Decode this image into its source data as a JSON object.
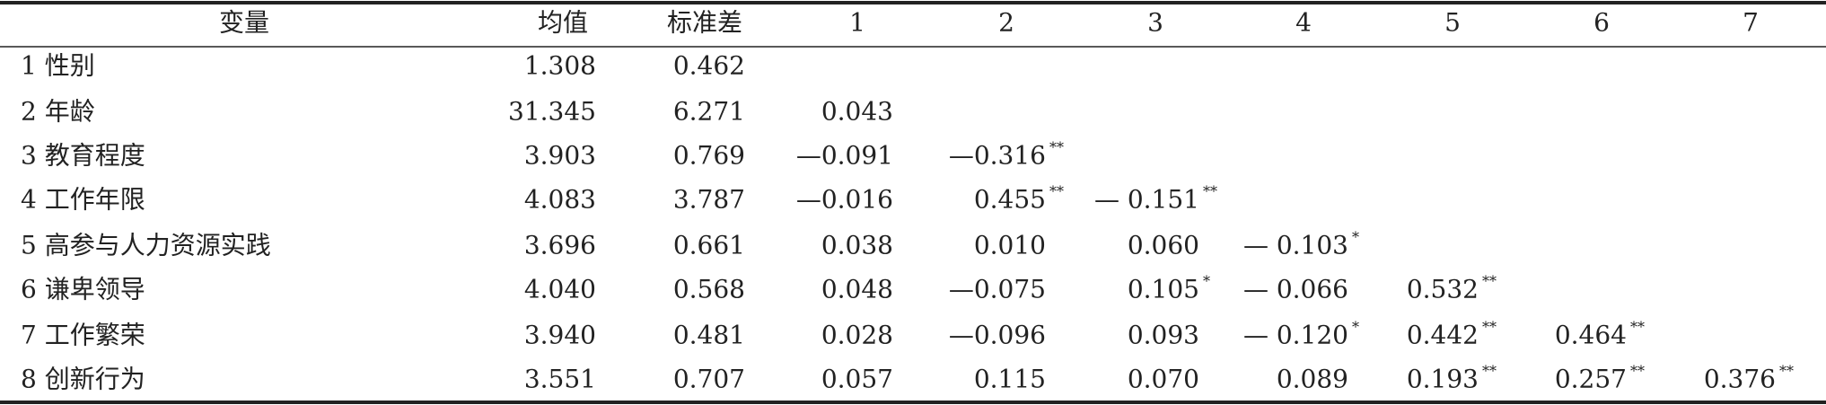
{
  "table": {
    "header": [
      "变量",
      "均值",
      "标准差",
      "1",
      "2",
      "3",
      "4",
      "5",
      "6",
      "7"
    ],
    "rows": [
      [
        "1 性别",
        "1.308",
        "0.462"
      ],
      [
        "2 年龄",
        "31.345",
        "6.271",
        "0.043"
      ],
      [
        "3 教育程度",
        "3.903",
        "0.769",
        "—0.091",
        {
          "text": "—0.316",
          "sig": "**"
        }
      ],
      [
        "4 工作年限",
        "4.083",
        "3.787",
        "—0.016",
        {
          "text": "0.455",
          "sig": "**"
        },
        {
          "text": "— 0.151",
          "sig": "**"
        }
      ],
      [
        "5 高参与人力资源实践",
        "3.696",
        "0.661",
        "0.038",
        "0.010",
        "0.060",
        {
          "text": "— 0.103",
          "sig": "*"
        }
      ],
      [
        "6 谦卑领导",
        "4.040",
        "0.568",
        "0.048",
        "—0.075",
        {
          "text": "0.105",
          "sig": "*"
        },
        "— 0.066",
        {
          "text": "0.532",
          "sig": "**"
        }
      ],
      [
        "7 工作繁荣",
        "3.940",
        "0.481",
        "0.028",
        "—0.096",
        "0.093",
        {
          "text": "— 0.120",
          "sig": "*"
        },
        {
          "text": "0.442",
          "sig": "**"
        },
        {
          "text": "0.464",
          "sig": "**"
        }
      ],
      [
        "8 创新行为",
        "3.551",
        "0.707",
        "0.057",
        "0.115",
        "0.070",
        "0.089",
        {
          "text": "0.193",
          "sig": "**"
        },
        {
          "text": "0.257",
          "sig": "**"
        },
        {
          "text": "0.376",
          "sig": "**"
        }
      ]
    ]
  }
}
